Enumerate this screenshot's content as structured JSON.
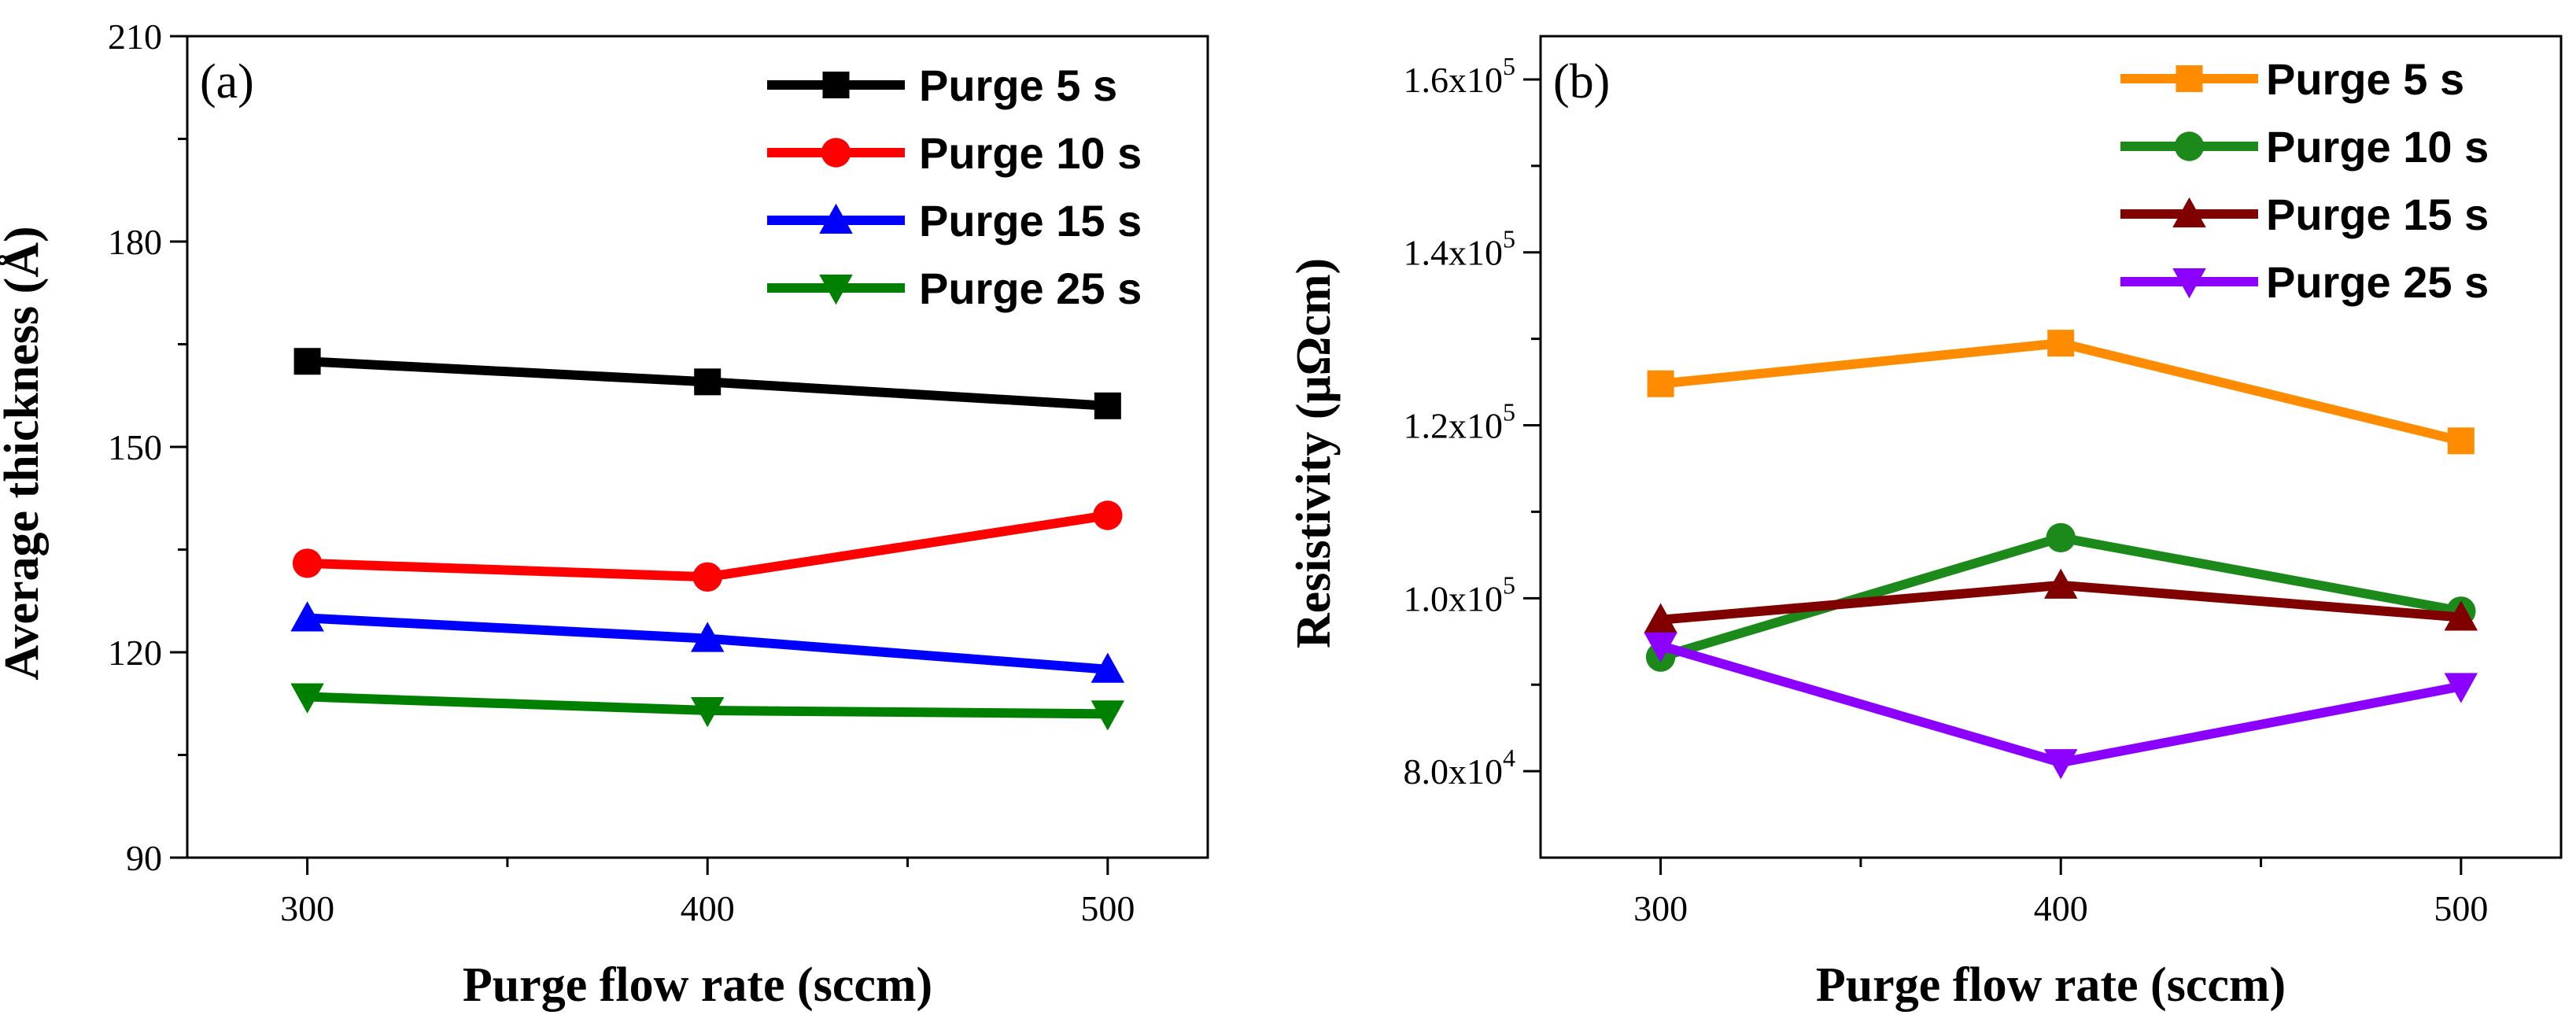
{
  "chart_data": [
    {
      "type": "line",
      "panel_label": "(a)",
      "xlabel": "Purge flow rate (sccm)",
      "ylabel": "Average thickness (Å)",
      "x": [
        300,
        400,
        500
      ],
      "xticks": [
        "300",
        "400",
        "500"
      ],
      "xlim": [
        270,
        525
      ],
      "ylim": [
        90,
        210
      ],
      "yticks": [
        90,
        120,
        150,
        180,
        210
      ],
      "yticklabels": [
        "90",
        "120",
        "150",
        "180",
        "210"
      ],
      "legend_position": "top-right",
      "series": [
        {
          "name": "Purge 5 s",
          "color": "#000000",
          "marker": "square",
          "values": [
            162.5,
            159.5,
            156.0
          ]
        },
        {
          "name": "Purge 10 s",
          "color": "#ff0000",
          "marker": "circle",
          "values": [
            133.0,
            131.0,
            140.0
          ]
        },
        {
          "name": "Purge 15 s",
          "color": "#0000ff",
          "marker": "triangle-up",
          "values": [
            125.0,
            122.0,
            117.5
          ]
        },
        {
          "name": "Purge 25 s",
          "color": "#008000",
          "marker": "triangle-down",
          "values": [
            113.5,
            111.5,
            111.0
          ]
        }
      ]
    },
    {
      "type": "line",
      "panel_label": "(b)",
      "xlabel": "Purge flow rate (sccm)",
      "ylabel": "Resistivity (μΩcm)",
      "x": [
        300,
        400,
        500
      ],
      "xticks": [
        "300",
        "400",
        "500"
      ],
      "xlim": [
        270,
        525
      ],
      "ylim": [
        70000,
        165000
      ],
      "yticks": [
        80000,
        100000,
        120000,
        140000,
        160000
      ],
      "yticklabels": [
        {
          "mantissa": "8.0x10",
          "exponent": "4"
        },
        {
          "mantissa": "1.0x10",
          "exponent": "5"
        },
        {
          "mantissa": "1.2x10",
          "exponent": "5"
        },
        {
          "mantissa": "1.4x10",
          "exponent": "5"
        },
        {
          "mantissa": "1.6x10",
          "exponent": "5"
        }
      ],
      "legend_position": "top-right",
      "series": [
        {
          "name": "Purge 5 s",
          "color": "#ff8c00",
          "marker": "square",
          "values": [
            124800,
            129500,
            118200
          ]
        },
        {
          "name": "Purge 10 s",
          "color": "#1b8a1b",
          "marker": "circle",
          "values": [
            93200,
            107000,
            98500
          ]
        },
        {
          "name": "Purge 15 s",
          "color": "#800000",
          "marker": "triangle-up",
          "values": [
            97500,
            101500,
            97800
          ]
        },
        {
          "name": "Purge 25 s",
          "color": "#8b00ff",
          "marker": "triangle-down",
          "values": [
            94500,
            81000,
            89800
          ]
        }
      ]
    }
  ]
}
